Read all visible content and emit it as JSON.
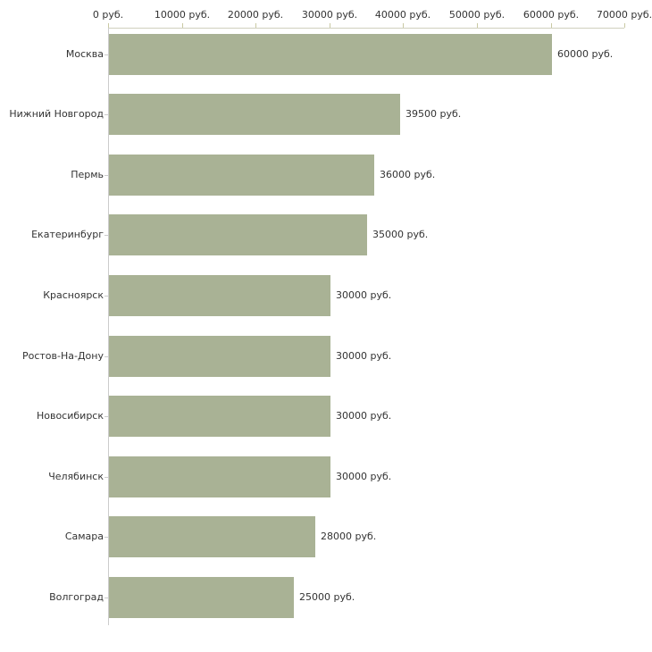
{
  "chart_data": {
    "type": "bar",
    "orientation": "horizontal",
    "title": "",
    "xlabel": "",
    "ylabel": "",
    "unit": "руб.",
    "grid": false,
    "legend": false,
    "xlim": [
      0,
      70000
    ],
    "x_ticks": [
      0,
      10000,
      20000,
      30000,
      40000,
      50000,
      60000,
      70000
    ],
    "x_tick_labels": [
      "0 руб.",
      "10000 руб.",
      "20000 руб.",
      "30000 руб.",
      "40000 руб.",
      "50000 руб.",
      "60000 руб.",
      "70000 руб."
    ],
    "categories": [
      "Москва",
      "Нижний Новгород",
      "Пермь",
      "Екатеринбург",
      "Красноярск",
      "Ростов-На-Дону",
      "Новосибирск",
      "Челябинск",
      "Самара",
      "Волгоград"
    ],
    "values": [
      60000,
      39500,
      36000,
      35000,
      30000,
      30000,
      30000,
      30000,
      28000,
      25000
    ],
    "value_labels": [
      "60000 руб.",
      "39500 руб.",
      "36000 руб.",
      "35000 руб.",
      "30000 руб.",
      "30000 руб.",
      "30000 руб.",
      "30000 руб.",
      "28000 руб.",
      "25000 руб."
    ],
    "colors": {
      "bar_fill": "#a9b295",
      "x_axis_line": "#d0d0be",
      "x_tick_mark": "#c9c9a3",
      "y_axis_line": "#cccccc",
      "category_tick_mark": "#cccccc",
      "text": "#333333",
      "background": "#ffffff"
    }
  }
}
